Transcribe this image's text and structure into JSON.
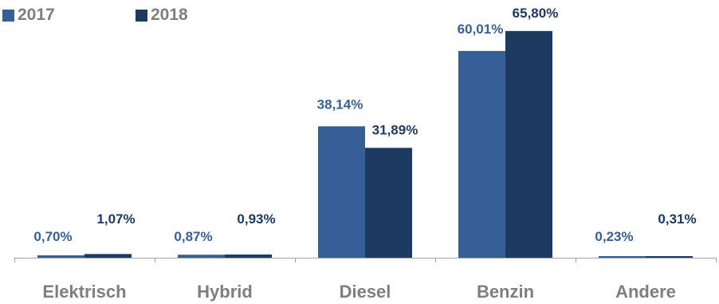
{
  "chart_data": {
    "type": "bar",
    "categories": [
      "Elektrisch",
      "Hybrid",
      "Diesel",
      "Benzin",
      "Andere"
    ],
    "series": [
      {
        "name": "2017",
        "color": "#375f97",
        "values": [
          0.7,
          0.87,
          38.14,
          60.01,
          0.23
        ],
        "labels": [
          "0,70%",
          "0,87%",
          "38,14%",
          "60,01%",
          "0,23%"
        ]
      },
      {
        "name": "2018",
        "color": "#1d3a61",
        "values": [
          1.07,
          0.93,
          31.89,
          65.8,
          0.31
        ],
        "labels": [
          "1,07%",
          "0,93%",
          "31,89%",
          "65,80%",
          "0,31%"
        ]
      }
    ],
    "title": "",
    "xlabel": "",
    "ylabel": "",
    "ylim": [
      0,
      66
    ],
    "grid": false,
    "legend_position": "top-left",
    "axis_color": "#a6a6a6"
  }
}
